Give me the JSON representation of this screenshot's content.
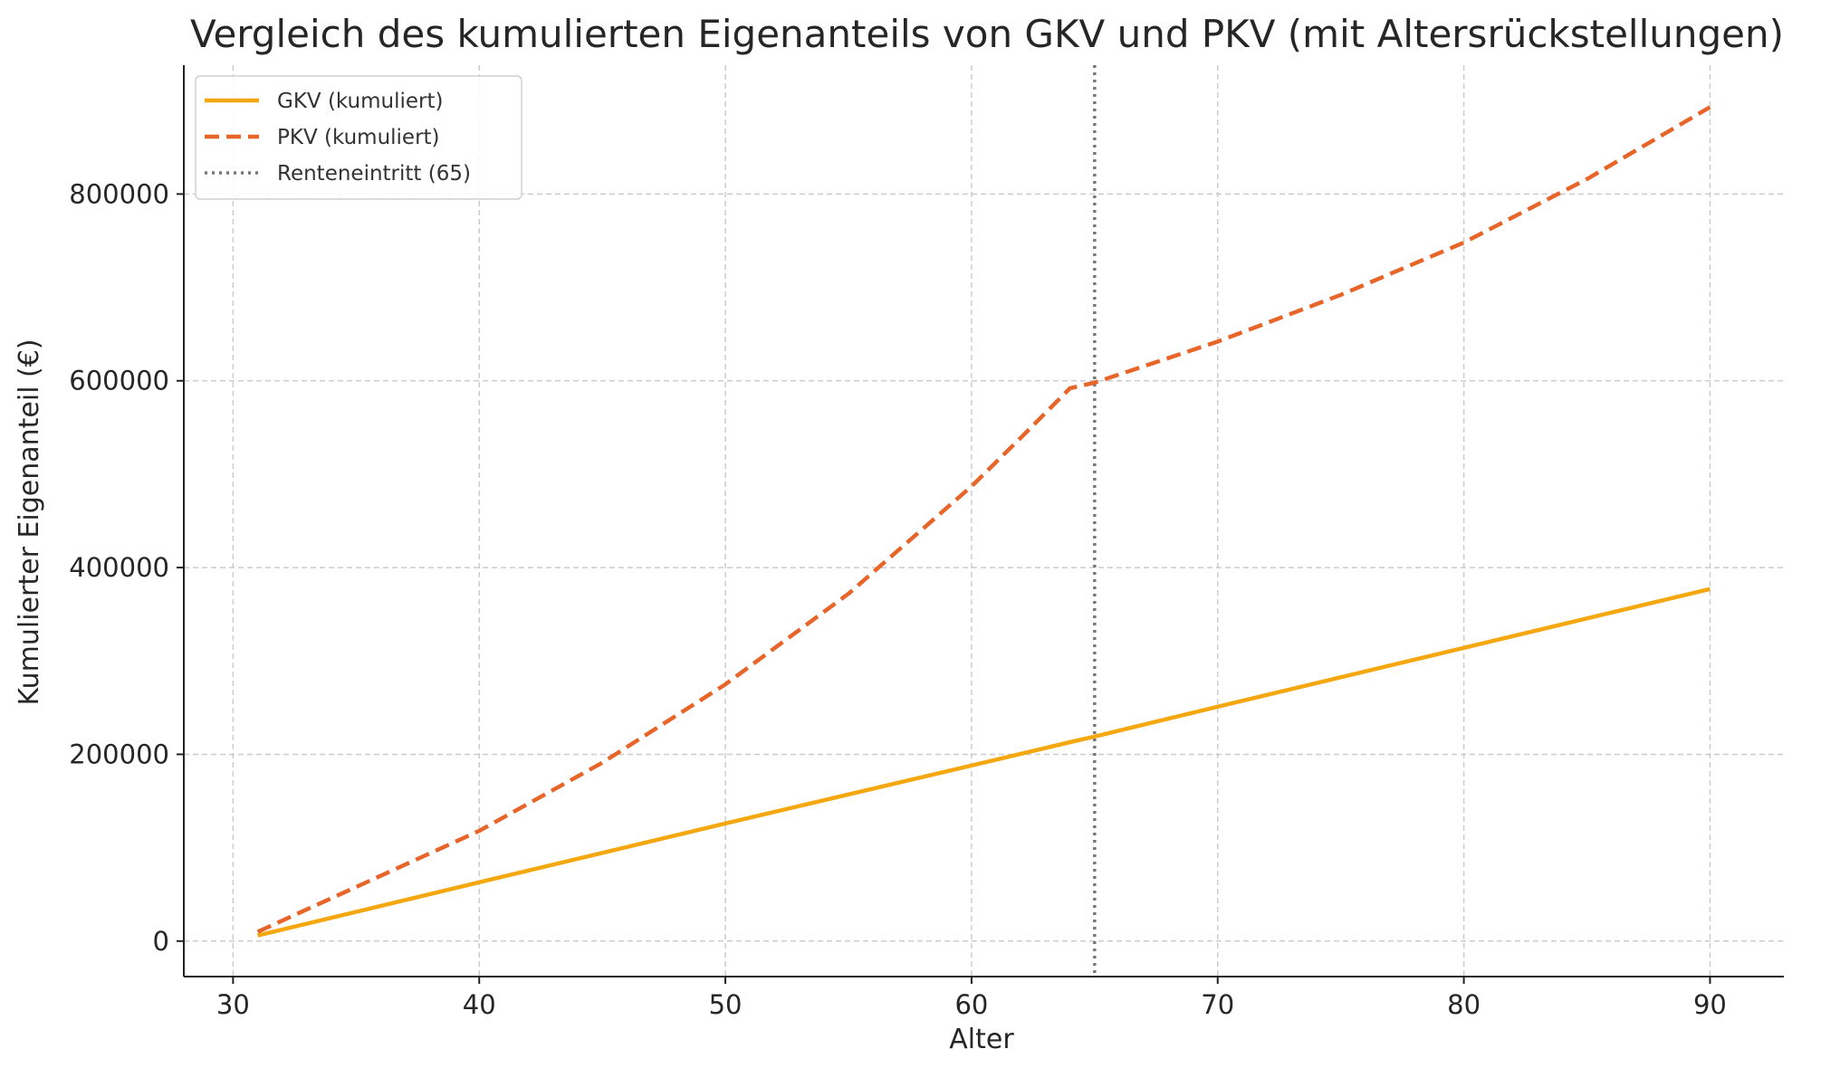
{
  "chart_data": {
    "type": "line",
    "title": "Vergleich des kumulierten Eigenanteils von GKV und PKV (mit Altersrückstellungen)",
    "xlabel": "Alter",
    "ylabel": "Kumulierter Eigenanteil (€)",
    "xlim": [
      28,
      93
    ],
    "ylim": [
      -38000,
      938000
    ],
    "xticks": [
      30,
      40,
      50,
      60,
      70,
      80,
      90
    ],
    "yticks": [
      0,
      200000,
      400000,
      600000,
      800000
    ],
    "grid": true,
    "legend_position": "top-left",
    "series": [
      {
        "name": "GKV (kumuliert)",
        "color": "#f5a70f",
        "style": "solid",
        "x": [
          31,
          40,
          50,
          60,
          64,
          65,
          70,
          80,
          90
        ],
        "y": [
          6000,
          63000,
          126000,
          188000,
          213000,
          219000,
          251000,
          314000,
          377000
        ]
      },
      {
        "name": "PKV (kumuliert)",
        "color": "#e8652a",
        "style": "dashed",
        "x": [
          31,
          35,
          40,
          45,
          50,
          55,
          60,
          62,
          64,
          65,
          70,
          75,
          80,
          85,
          90
        ],
        "y": [
          10000,
          58000,
          118000,
          191000,
          275000,
          372000,
          487000,
          539000,
          592000,
          598000,
          642000,
          692000,
          748000,
          816000,
          893000
        ]
      }
    ],
    "vlines": [
      {
        "name": "Renteneintritt (65)",
        "x": 65,
        "color": "#777777",
        "style": "dotted"
      }
    ]
  }
}
